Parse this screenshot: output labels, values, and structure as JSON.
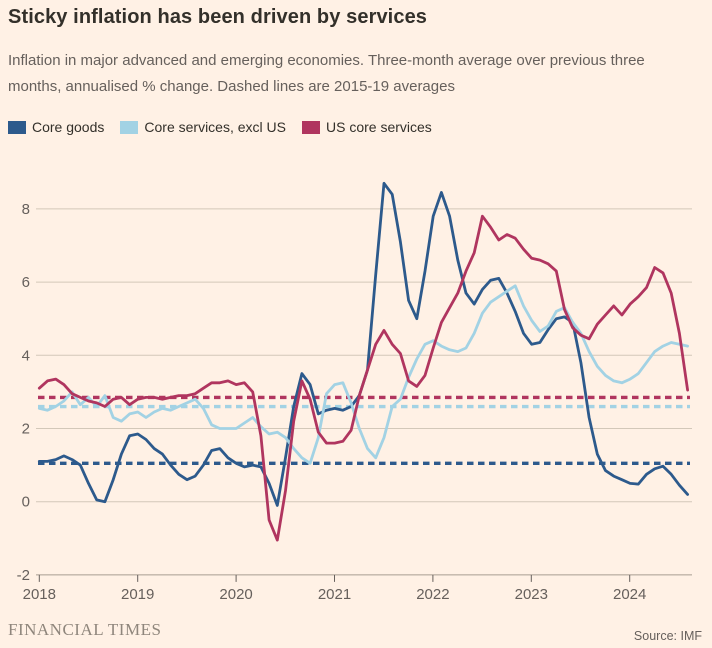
{
  "header": {
    "title": "Sticky inflation has been driven by services",
    "subtitle_line1": "Inflation in major advanced and emerging economies. Three-month average over previous three",
    "subtitle_line2": "months, annualised % change. Dashed lines are 2015-19 averages"
  },
  "legend": {
    "items": [
      {
        "label": "Core goods",
        "color": "#2d5a8c"
      },
      {
        "label": "Core services, excl US",
        "color": "#a2d2e4"
      },
      {
        "label": "US core services",
        "color": "#b0355f"
      }
    ]
  },
  "footer": {
    "brand": "FINANCIAL TIMES",
    "source": "Source: IMF"
  },
  "colors": {
    "background": "#fff1e5",
    "grid": "#d3c8b9",
    "axis": "#a89d91",
    "tick_text": "#66605c"
  },
  "chart_data": {
    "type": "line",
    "title": "Sticky inflation has been driven by services",
    "xlabel": "",
    "ylabel": "annualised % change",
    "x_start": "2018-01",
    "x_end": "2024-08",
    "points_per_year": 12,
    "x_tick_labels": [
      "2018",
      "2019",
      "2020",
      "2021",
      "2022",
      "2023",
      "2024"
    ],
    "y_ticks": [
      -2,
      0,
      2,
      4,
      6,
      8
    ],
    "ylim": [
      -2,
      9.3
    ],
    "grid": true,
    "legend_position": "top",
    "dashed_lines_note": "Dashed lines are 2015-19 averages",
    "series": [
      {
        "name": "Core goods",
        "color": "#2d5a8c",
        "avg_2015_19": 1.05,
        "values": [
          1.1,
          1.1,
          1.15,
          1.25,
          1.15,
          1.0,
          0.5,
          0.05,
          0.0,
          0.6,
          1.3,
          1.8,
          1.85,
          1.7,
          1.45,
          1.3,
          1.0,
          0.75,
          0.6,
          0.7,
          1.0,
          1.4,
          1.45,
          1.2,
          1.05,
          0.95,
          1.0,
          0.95,
          0.5,
          -0.1,
          1.2,
          2.6,
          3.5,
          3.2,
          2.4,
          2.5,
          2.55,
          2.5,
          2.6,
          2.9,
          3.6,
          6.2,
          8.7,
          8.4,
          7.1,
          5.5,
          5.0,
          6.3,
          7.8,
          8.45,
          7.8,
          6.6,
          5.7,
          5.4,
          5.8,
          6.05,
          6.1,
          5.7,
          5.2,
          4.6,
          4.3,
          4.35,
          4.7,
          5.0,
          5.05,
          4.9,
          3.8,
          2.3,
          1.3,
          0.85,
          0.7,
          0.6,
          0.5,
          0.48,
          0.75,
          0.9,
          0.97,
          0.75,
          0.45,
          0.2
        ]
      },
      {
        "name": "Core services, excl US",
        "color": "#a2d2e4",
        "avg_2015_19": 2.6,
        "values": [
          2.55,
          2.5,
          2.6,
          2.75,
          3.0,
          2.65,
          2.85,
          2.6,
          2.9,
          2.3,
          2.2,
          2.4,
          2.45,
          2.3,
          2.45,
          2.55,
          2.5,
          2.6,
          2.7,
          2.8,
          2.55,
          2.1,
          2.0,
          2.0,
          2.0,
          2.15,
          2.3,
          2.05,
          1.85,
          1.9,
          1.75,
          1.45,
          1.2,
          1.05,
          1.75,
          2.95,
          3.2,
          3.25,
          2.7,
          2.0,
          1.45,
          1.2,
          1.75,
          2.6,
          2.8,
          3.4,
          3.9,
          4.3,
          4.4,
          4.25,
          4.15,
          4.1,
          4.2,
          4.6,
          5.15,
          5.45,
          5.6,
          5.75,
          5.9,
          5.35,
          4.95,
          4.65,
          4.8,
          5.2,
          5.3,
          4.9,
          4.6,
          4.1,
          3.7,
          3.45,
          3.3,
          3.25,
          3.35,
          3.5,
          3.8,
          4.1,
          4.25,
          4.35,
          4.3,
          4.25
        ]
      },
      {
        "name": "US core services",
        "color": "#b0355f",
        "avg_2015_19": 2.85,
        "values": [
          3.1,
          3.3,
          3.35,
          3.2,
          2.95,
          2.85,
          2.75,
          2.7,
          2.6,
          2.8,
          2.85,
          2.65,
          2.8,
          2.85,
          2.85,
          2.8,
          2.85,
          2.9,
          2.9,
          2.95,
          3.1,
          3.25,
          3.25,
          3.3,
          3.2,
          3.25,
          3.0,
          1.8,
          -0.5,
          -1.05,
          0.3,
          2.2,
          3.3,
          2.8,
          1.9,
          1.6,
          1.6,
          1.65,
          1.95,
          2.9,
          3.6,
          4.3,
          4.68,
          4.3,
          4.05,
          3.3,
          3.15,
          3.45,
          4.2,
          4.9,
          5.3,
          5.7,
          6.3,
          6.8,
          7.8,
          7.5,
          7.15,
          7.3,
          7.2,
          6.9,
          6.65,
          6.6,
          6.5,
          6.3,
          5.25,
          4.75,
          4.55,
          4.45,
          4.85,
          5.1,
          5.35,
          5.1,
          5.4,
          5.6,
          5.85,
          6.4,
          6.25,
          5.7,
          4.6,
          3.05
        ]
      }
    ]
  }
}
